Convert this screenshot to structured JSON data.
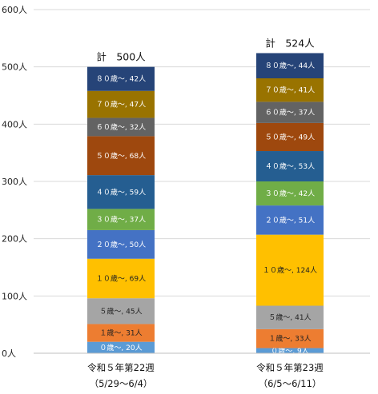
{
  "chart_data": {
    "type": "bar",
    "stacked": true,
    "unit": "人",
    "ylim": [
      0,
      600
    ],
    "yticks": [
      "0人",
      "100人",
      "200人",
      "300人",
      "400人",
      "500人",
      "600人"
    ],
    "grid": true,
    "categories": [
      {
        "line1": "令和５年第22週",
        "line2": "（5/29～6/4）",
        "total_label": "計　500人"
      },
      {
        "line1": "令和５年第23週",
        "line2": "（6/5～6/11）",
        "total_label": "計　524人"
      }
    ],
    "series": [
      {
        "name": "０歳",
        "color": "#5b9bd5",
        "text_color": "#ffffff",
        "values": [
          20,
          9
        ],
        "labels": [
          "０歳～, 20人",
          "０歳～, 9人"
        ]
      },
      {
        "name": "１歳",
        "color": "#ed7d31",
        "text_color": "#222222",
        "values": [
          31,
          33
        ],
        "labels": [
          "１歳～, 31人",
          "１歳～, 33人"
        ]
      },
      {
        "name": "５歳",
        "color": "#a5a5a5",
        "text_color": "#222222",
        "values": [
          45,
          41
        ],
        "labels": [
          "５歳～, 45人",
          "５歳～, 41人"
        ]
      },
      {
        "name": "１０歳",
        "color": "#ffc000",
        "text_color": "#222222",
        "values": [
          69,
          124
        ],
        "labels": [
          "１０歳～, 69人",
          "１０歳～, 124人"
        ]
      },
      {
        "name": "２０歳",
        "color": "#4472c4",
        "text_color": "#ffffff",
        "values": [
          50,
          51
        ],
        "labels": [
          "２０歳～, 50人",
          "２０歳～, 51人"
        ]
      },
      {
        "name": "３０歳",
        "color": "#70ad47",
        "text_color": "#ffffff",
        "values": [
          37,
          42
        ],
        "labels": [
          "３０歳～, 37人",
          "３０歳～, 42人"
        ]
      },
      {
        "name": "４０歳",
        "color": "#255e91",
        "text_color": "#ffffff",
        "values": [
          59,
          53
        ],
        "labels": [
          "４０歳～, 59人",
          "４０歳～, 53人"
        ]
      },
      {
        "name": "５０歳",
        "color": "#9e480e",
        "text_color": "#ffffff",
        "values": [
          68,
          49
        ],
        "labels": [
          "５０歳～, 68人",
          "５０歳～, 49人"
        ]
      },
      {
        "name": "６０歳",
        "color": "#636363",
        "text_color": "#ffffff",
        "values": [
          32,
          37
        ],
        "labels": [
          "６０歳～, 32人",
          "６０歳～, 37人"
        ]
      },
      {
        "name": "７０歳",
        "color": "#997300",
        "text_color": "#ffffff",
        "values": [
          47,
          41
        ],
        "labels": [
          "７０歳～, 47人",
          "７０歳～, 41人"
        ]
      },
      {
        "name": "８０歳",
        "color": "#264478",
        "text_color": "#ffffff",
        "values": [
          42,
          44
        ],
        "labels": [
          "８０歳～, 42人",
          "８０歳～, 44人"
        ]
      }
    ]
  }
}
